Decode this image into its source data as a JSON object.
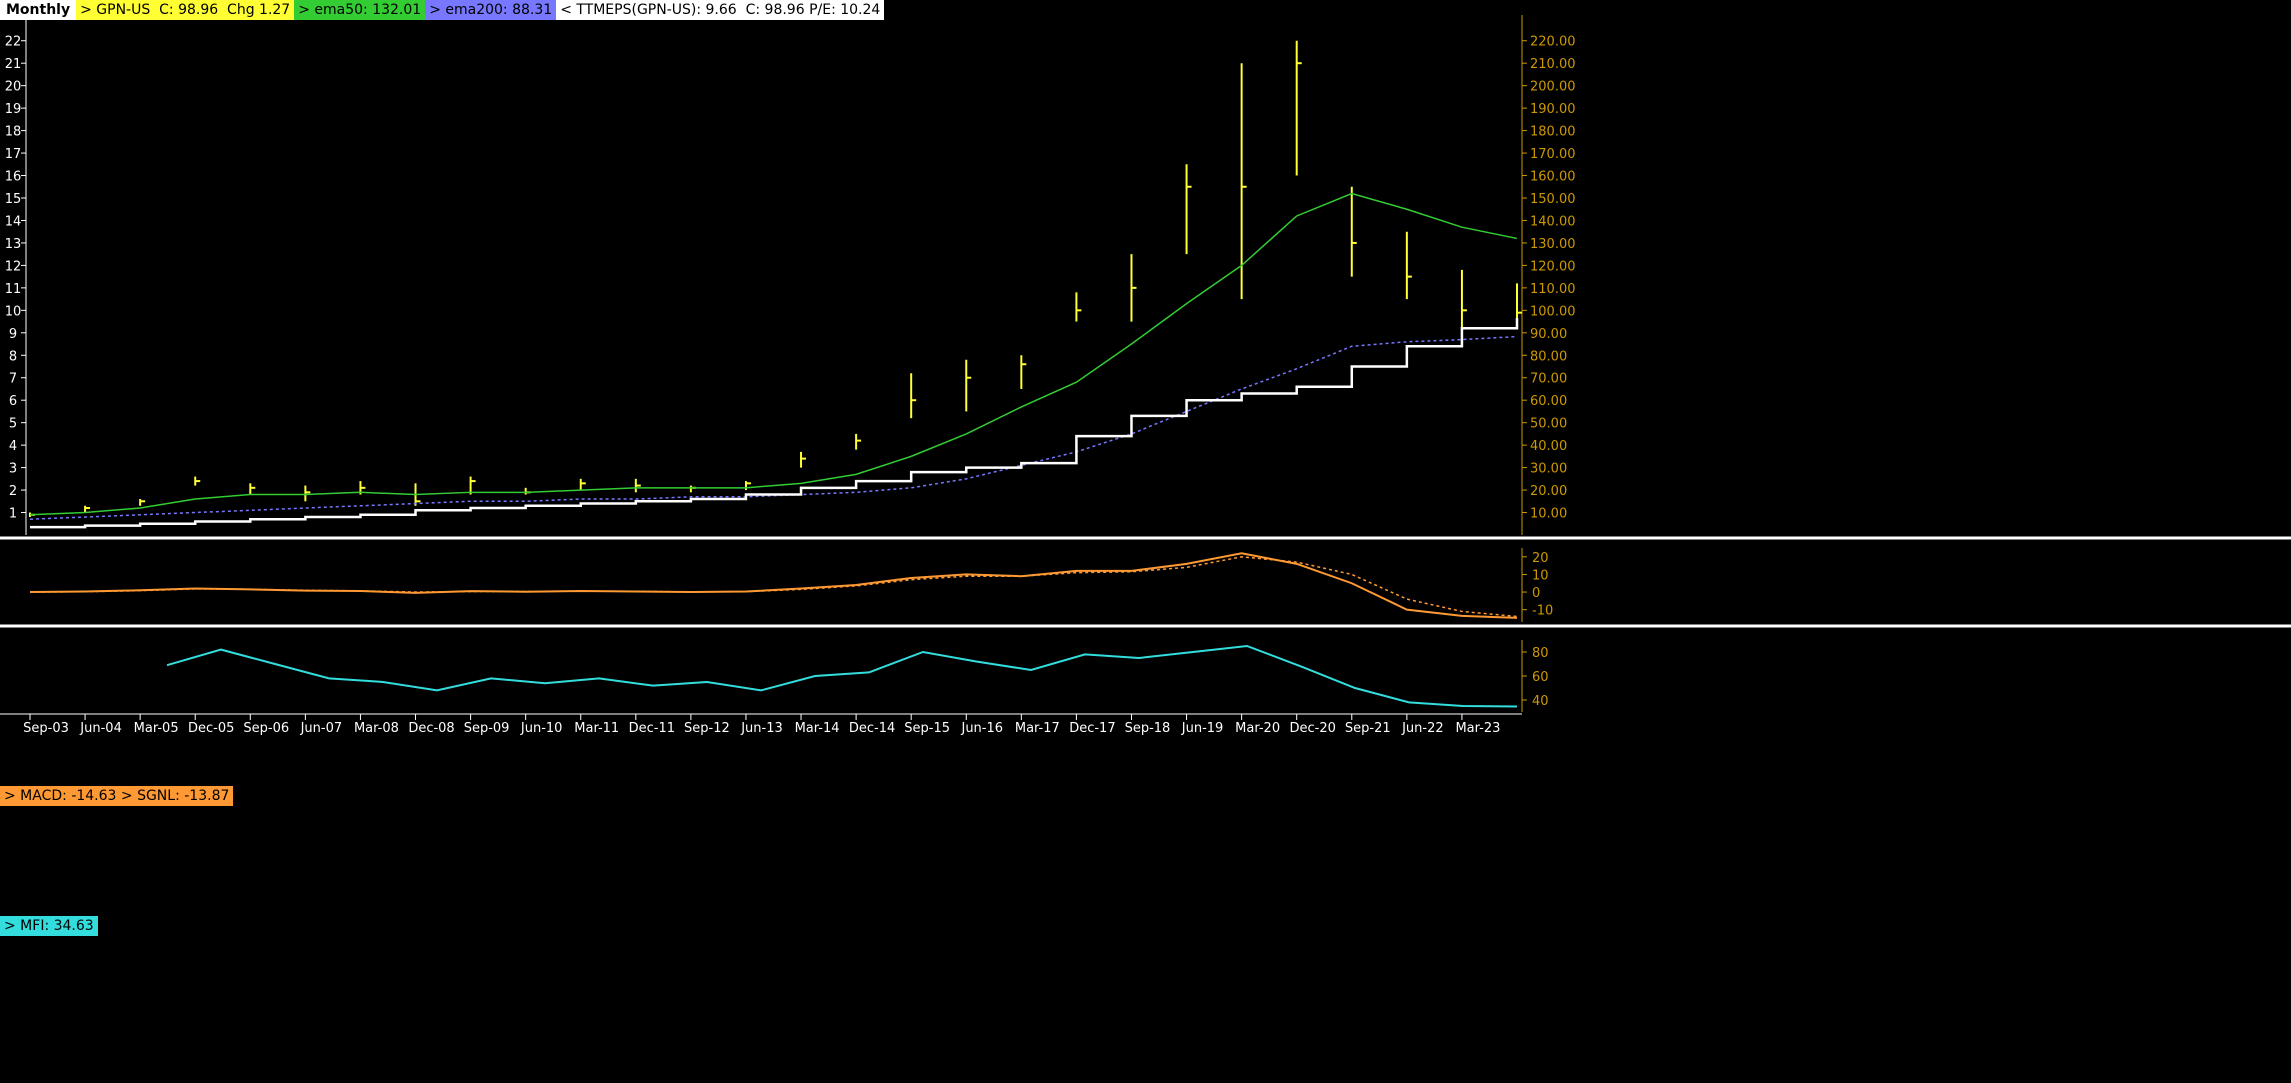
{
  "header": {
    "period": "Monthly",
    "price_label": "> GPN-US  C: 98.96  Chg 1.27",
    "ema50_label": "> ema50: 132.01",
    "ema200_label": "> ema200: 88.31",
    "eps_label": "< TTMEPS(GPN-US): 9.66  C: 98.96 P/E: 10.24"
  },
  "macd_panel": {
    "label": "> MACD: -14.63 > SGNL: -13.87"
  },
  "mfi_panel": {
    "label": "> MFI: 34.63"
  },
  "colors": {
    "background": "#000000",
    "price": "#ffff33",
    "ema50": "#33cc33",
    "ema200": "#7777ff",
    "eps": "#ffffff",
    "macd": "#ff9933",
    "mfi": "#33dddd",
    "axis_right": "#cc9900",
    "axis_left": "#ffffff"
  },
  "chart_data": [
    {
      "type": "line",
      "name": "price",
      "x_tick_labels": [
        "Sep-03",
        "Jun-04",
        "Mar-05",
        "Dec-05",
        "Sep-06",
        "Jun-07",
        "Mar-08",
        "Dec-08",
        "Sep-09",
        "Jun-10",
        "Mar-11",
        "Dec-11",
        "Sep-12",
        "Jun-13",
        "Mar-14",
        "Dec-14",
        "Sep-15",
        "Jun-16",
        "Mar-17",
        "Dec-17",
        "Sep-18",
        "Jun-19",
        "Mar-20",
        "Dec-20",
        "Sep-21",
        "Jun-22",
        "Mar-23"
      ],
      "x": [
        "Sep-03",
        "Jun-04",
        "Mar-05",
        "Dec-05",
        "Sep-06",
        "Jun-07",
        "Mar-08",
        "Dec-08",
        "Sep-09",
        "Jun-10",
        "Mar-11",
        "Dec-11",
        "Sep-12",
        "Jun-13",
        "Mar-14",
        "Dec-14",
        "Sep-15",
        "Jun-16",
        "Mar-17",
        "Dec-17",
        "Sep-18",
        "Jun-19",
        "Mar-20",
        "Dec-20",
        "Sep-21",
        "Jun-22",
        "Mar-23",
        "Jul-23"
      ],
      "y_right_ticks": [
        "10.00",
        "20.00",
        "30.00",
        "40.00",
        "50.00",
        "60.00",
        "70.00",
        "80.00",
        "90.00",
        "100.00",
        "110.00",
        "120.00",
        "130.00",
        "140.00",
        "150.00",
        "160.00",
        "170.00",
        "180.00",
        "190.00",
        "200.00",
        "210.00",
        "220.00"
      ],
      "y_left_ticks": [
        "1",
        "2",
        "3",
        "4",
        "5",
        "6",
        "7",
        "8",
        "9",
        "10",
        "11",
        "12",
        "13",
        "14",
        "15",
        "16",
        "17",
        "18",
        "19",
        "20",
        "21",
        "22"
      ],
      "ylim_right": [
        0,
        227
      ],
      "ylim_left": [
        0,
        22.7
      ],
      "series": [
        {
          "key": "price_high",
          "values": [
            10,
            13,
            16,
            26,
            23,
            22,
            24,
            23,
            26,
            21,
            25,
            25,
            22,
            24,
            37,
            45,
            72,
            78,
            80,
            108,
            125,
            165,
            210,
            220,
            155,
            135,
            118,
            112
          ]
        },
        {
          "key": "price_low",
          "values": [
            8,
            10,
            13,
            22,
            18,
            15,
            18,
            13,
            18,
            18,
            20,
            19,
            19,
            20,
            30,
            38,
            52,
            55,
            65,
            95,
            95,
            125,
            105,
            160,
            115,
            105,
            92,
            95
          ]
        },
        {
          "key": "price_close",
          "values": [
            9,
            12,
            15,
            24,
            21,
            19,
            21,
            15,
            24,
            19,
            23,
            22,
            21,
            23,
            34,
            42,
            60,
            70,
            76,
            100,
            110,
            155,
            155,
            210,
            130,
            115,
            100,
            98.96
          ]
        },
        {
          "name": "ema50",
          "key": "ema50",
          "values": [
            9,
            10,
            12,
            16,
            18,
            18,
            19,
            18,
            19,
            19,
            20,
            21,
            21,
            21,
            23,
            27,
            35,
            45,
            57,
            68,
            85,
            103,
            120,
            142,
            152,
            145,
            137,
            132
          ]
        },
        {
          "name": "ema200",
          "key": "ema200",
          "values": [
            7,
            8,
            9,
            10,
            11,
            12,
            13,
            14,
            15,
            15,
            16,
            16,
            17,
            17,
            18,
            19,
            21,
            25,
            31,
            37,
            45,
            55,
            65,
            74,
            84,
            86,
            87,
            88.3
          ]
        },
        {
          "name": "TTMEPS(GPN-US)",
          "key": "eps",
          "values": [
            0.35,
            0.42,
            0.5,
            0.6,
            0.7,
            0.8,
            0.9,
            1.1,
            1.2,
            1.3,
            1.4,
            1.5,
            1.6,
            1.8,
            2.1,
            2.4,
            2.8,
            3.0,
            3.2,
            4.4,
            5.3,
            6.0,
            6.3,
            6.6,
            7.5,
            8.4,
            9.2,
            9.66
          ]
        }
      ]
    },
    {
      "type": "line",
      "name": "macd",
      "x": [
        "Sep-03",
        "Jun-04",
        "Mar-05",
        "Dec-05",
        "Sep-06",
        "Jun-07",
        "Mar-08",
        "Dec-08",
        "Sep-09",
        "Jun-10",
        "Mar-11",
        "Dec-11",
        "Sep-12",
        "Jun-13",
        "Mar-14",
        "Dec-14",
        "Sep-15",
        "Jun-16",
        "Mar-17",
        "Dec-17",
        "Sep-18",
        "Jun-19",
        "Mar-20",
        "Dec-20",
        "Sep-21",
        "Jun-22",
        "Mar-23",
        "Jul-23"
      ],
      "y_ticks": [
        "20",
        "10",
        "0",
        "-10"
      ],
      "ylim": [
        -17,
        25
      ],
      "series": [
        {
          "name": "MACD",
          "values": [
            0,
            0.3,
            1,
            2,
            1.5,
            0.8,
            0.6,
            -0.5,
            0.5,
            0.2,
            0.6,
            0.3,
            0,
            0.3,
            2,
            4,
            8,
            10,
            9,
            12,
            12,
            16,
            22,
            16,
            5,
            -10,
            -13.5,
            -14.63
          ]
        },
        {
          "name": "SGNL",
          "values": [
            0,
            0.2,
            0.8,
            1.8,
            1.6,
            1,
            0.7,
            0,
            0.3,
            0.3,
            0.5,
            0.4,
            0.1,
            0.2,
            1.5,
            3.5,
            7,
            9,
            9,
            11,
            11.5,
            14,
            20,
            17,
            10,
            -4,
            -11,
            -13.87
          ]
        }
      ]
    },
    {
      "type": "line",
      "name": "mfi",
      "x": [
        "Mar-05",
        "Dec-05",
        "Sep-06",
        "Jun-07",
        "Mar-08",
        "Dec-08",
        "Sep-09",
        "Jun-10",
        "Mar-11",
        "Dec-11",
        "Sep-12",
        "Jun-13",
        "Mar-14",
        "Dec-14",
        "Sep-15",
        "Jun-16",
        "Mar-17",
        "Dec-17",
        "Sep-18",
        "Jun-19",
        "Mar-20",
        "Dec-20",
        "Sep-21",
        "Jun-22",
        "Mar-23",
        "Jul-23"
      ],
      "y_ticks": [
        "80",
        "60",
        "40"
      ],
      "ylim": [
        30,
        90
      ],
      "series": [
        {
          "name": "MFI",
          "values": [
            69,
            82,
            70,
            58,
            55,
            48,
            58,
            54,
            58,
            52,
            55,
            48,
            60,
            63,
            80,
            72,
            65,
            78,
            75,
            80,
            85,
            68,
            50,
            38,
            35,
            34.63
          ]
        }
      ]
    }
  ]
}
